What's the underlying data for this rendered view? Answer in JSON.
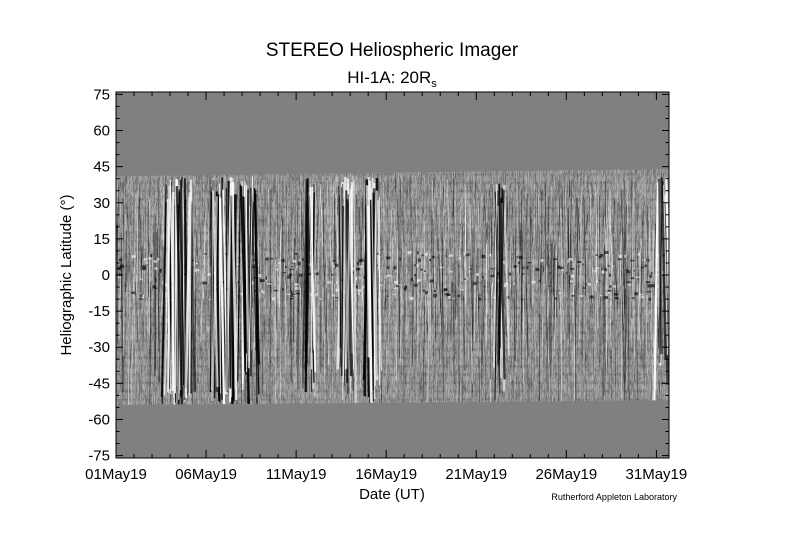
{
  "chart_data": {
    "type": "heatmap",
    "title": "STEREO Heliospheric Imager",
    "subtitle_main": "HI-1A: 20R",
    "subtitle_sub": "s",
    "xlabel": "Date (UT)",
    "ylabel": "Heliographic Latitude (°)",
    "credit": "Rutherford Appleton Laboratory",
    "x_ticks": [
      "01May19",
      "06May19",
      "11May19",
      "16May19",
      "21May19",
      "26May19",
      "31May19"
    ],
    "x_tick_days": [
      1,
      6,
      11,
      16,
      21,
      26,
      31
    ],
    "xlim": [
      1,
      31.7
    ],
    "y_ticks": [
      "75",
      "60",
      "45",
      "30",
      "15",
      "0",
      "-15",
      "-30",
      "-45",
      "-60",
      "-75"
    ],
    "y_tick_values": [
      75,
      60,
      45,
      30,
      15,
      0,
      -15,
      -30,
      -45,
      -60,
      -75
    ],
    "ylim": [
      -76,
      76
    ],
    "data_band_latitude_top": [
      41,
      44
    ],
    "data_band_latitude_bottom": [
      -54,
      -52
    ],
    "background_color": "#808080",
    "colormap": "grayscale difference image (black to white)",
    "strong_features": [
      {
        "day": 4.5,
        "intensity": "very strong"
      },
      {
        "day": 7.0,
        "intensity": "very strong"
      },
      {
        "day": 8.3,
        "intensity": "strong"
      },
      {
        "day": 11.8,
        "intensity": "moderate"
      },
      {
        "day": 13.8,
        "intensity": "strong"
      },
      {
        "day": 15.2,
        "intensity": "strong"
      },
      {
        "day": 22.3,
        "intensity": "moderate"
      },
      {
        "day": 31.3,
        "intensity": "moderate"
      }
    ]
  }
}
